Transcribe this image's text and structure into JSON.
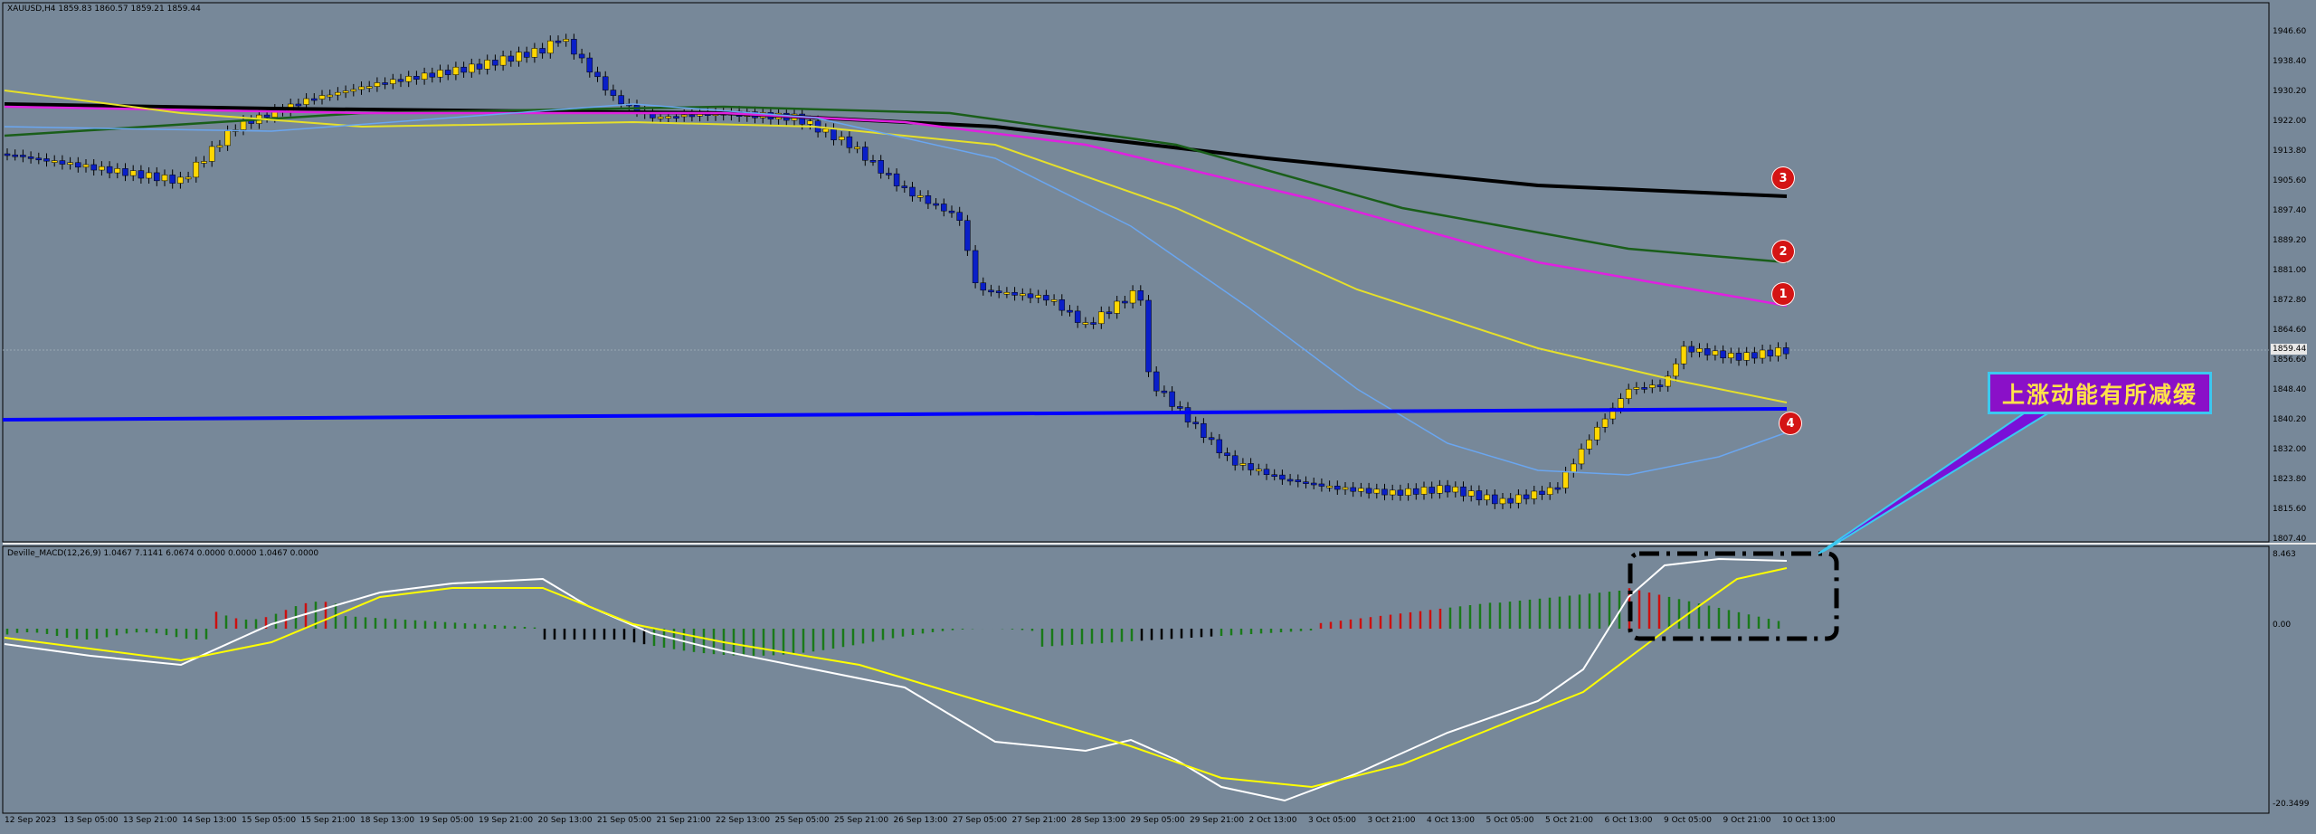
{
  "header": {
    "main_title": "XAUUSD,H4  1859.83 1860.57 1859.21 1859.44",
    "macd_title": "Deville_MACD(12,26,9) 1.0467 7.1141 6.0674 0.0000 0.0000 1.0467 0.0000"
  },
  "price_axis": {
    "labels": [
      "1946.60",
      "1938.40",
      "1930.20",
      "1922.00",
      "1913.80",
      "1905.60",
      "1897.40",
      "1889.20",
      "1881.00",
      "1872.80",
      "1864.60",
      "1856.60",
      "1848.40",
      "1840.20",
      "1832.00",
      "1823.80",
      "1815.60",
      "1807.40"
    ],
    "current_price": "1859.44"
  },
  "macd_axis": {
    "labels": [
      "8.463",
      "0.00",
      "-20.3499"
    ]
  },
  "date_axis": {
    "labels": [
      "12 Sep 2023",
      "13 Sep 05:00",
      "13 Sep 21:00",
      "14 Sep 13:00",
      "15 Sep 05:00",
      "15 Sep 21:00",
      "18 Sep 13:00",
      "19 Sep 05:00",
      "19 Sep 21:00",
      "20 Sep 13:00",
      "21 Sep 05:00",
      "21 Sep 21:00",
      "22 Sep 13:00",
      "25 Sep 05:00",
      "25 Sep 21:00",
      "26 Sep 13:00",
      "27 Sep 05:00",
      "27 Sep 21:00",
      "28 Sep 13:00",
      "29 Sep 05:00",
      "29 Sep 21:00",
      "2 Oct 13:00",
      "3 Oct 05:00",
      "3 Oct 21:00",
      "4 Oct 13:00",
      "5 Oct 05:00",
      "5 Oct 21:00",
      "6 Oct 13:00",
      "9 Oct 05:00",
      "9 Oct 21:00",
      "10 Oct 13:00"
    ]
  },
  "markers": [
    "3",
    "2",
    "1",
    "4"
  ],
  "callout": {
    "text": "上涨动能有所减缓"
  },
  "colors": {
    "background": "#778899",
    "bull_candle": "#ffd700",
    "bear_candle": "#0a1fc8",
    "ma_black": "#000000",
    "ma_green": "#1a5e1a",
    "ma_magenta": "#e020e0",
    "ma_yellow": "#e6e02a",
    "ma_lightblue": "#6aa6f0",
    "support_line": "#0000ff",
    "macd_line": "#ffffff",
    "signal_line": "#ffff00",
    "hist_up": "#cc1010",
    "hist_down": "#1a7a1a",
    "marker": "#d41414",
    "callout_bg": "#8a10c8",
    "callout_text": "#ffe24a"
  }
}
